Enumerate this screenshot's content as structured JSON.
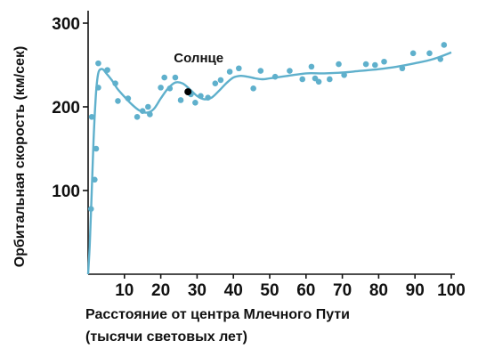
{
  "chart_data": {
    "type": "scatter",
    "xlabel_line1": "Расстояние от центра Млечного Пути",
    "xlabel_line2": "(тысячи световых лет)",
    "ylabel": "Орбитальная скорость (км/сек)",
    "xlim": [
      0,
      100
    ],
    "ylim": [
      0,
      300
    ],
    "x_ticks": [
      10,
      20,
      30,
      40,
      50,
      60,
      70,
      80,
      90,
      100
    ],
    "y_ticks": [
      100,
      200,
      300
    ],
    "grid": false,
    "point_color": "#5fb0cc",
    "curve_color": "#5fb0cc",
    "series": [
      {
        "kind": "points",
        "x": [
          0.8,
          1.0,
          1.8,
          2.2,
          2.8,
          2.8,
          5.3,
          7.5,
          8.2,
          11.0,
          13.5,
          15.0,
          16.5,
          17.0,
          20.0,
          21.0,
          22.5,
          24.0,
          25.5,
          28.3,
          29.5,
          31.0,
          33.0,
          35.0,
          36.5,
          39.0,
          41.5,
          45.5,
          47.5,
          51.5,
          55.5,
          59.0,
          61.5,
          62.5,
          63.5,
          66.5,
          69.0,
          70.5,
          76.5,
          79.0,
          81.5,
          86.5,
          89.5,
          94.0,
          97.0,
          98.0
        ],
        "y": [
          78,
          188,
          113,
          150,
          223,
          252,
          244,
          228,
          207,
          210,
          188,
          195,
          200,
          191,
          223,
          235,
          222,
          235,
          208,
          215,
          205,
          213,
          211,
          228,
          232,
          242,
          246,
          222,
          243,
          236,
          243,
          233,
          248,
          234,
          230,
          233,
          251,
          238,
          251,
          250,
          254,
          246,
          264,
          264,
          257,
          274
        ]
      },
      {
        "kind": "curve",
        "x": [
          0.0,
          0.5,
          1.0,
          1.5,
          2.0,
          2.5,
          3.0,
          4.0,
          5.0,
          6.5,
          8.0,
          10.0,
          12.0,
          14.0,
          16.0,
          18.0,
          20.0,
          22.0,
          24.0,
          26.0,
          28.0,
          30.0,
          32.0,
          34.0,
          36.0,
          38.0,
          40.0,
          42.0,
          44.0,
          46.0,
          48.0,
          50.0,
          55.0,
          60.0,
          65.0,
          70.0,
          75.0,
          80.0,
          85.0,
          90.0,
          95.0,
          100.0
        ],
        "y": [
          0,
          40,
          100,
          160,
          205,
          232,
          243,
          245,
          240,
          232,
          222,
          212,
          203,
          196,
          193,
          197,
          210,
          222,
          229,
          228,
          221,
          213,
          209,
          211,
          219,
          228,
          235,
          237,
          236,
          234,
          233,
          234,
          237,
          240,
          240,
          241,
          243,
          245,
          248,
          252,
          257,
          265
        ]
      }
    ],
    "annotations": [
      {
        "text": "Солнце",
        "x": 27.5,
        "y": 218,
        "color": "#000000"
      }
    ]
  }
}
